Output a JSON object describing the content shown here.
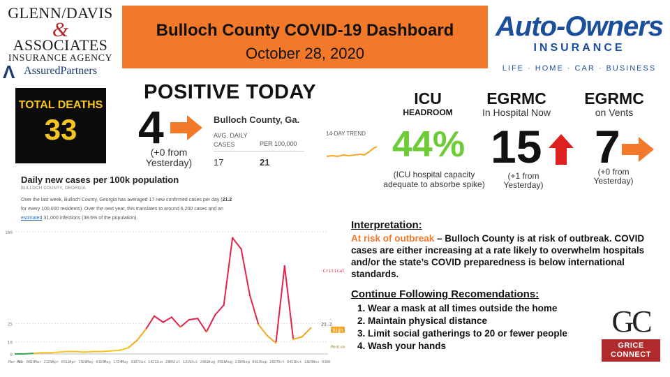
{
  "sponsor_left": {
    "line1": "GLENN/DAVIS",
    "amp": "&",
    "line2": "ASSOCIATES",
    "line3": "INSURANCE AGENCY",
    "line4": "AssuredPartners"
  },
  "header": {
    "title": "Bulloch County COVID-19 Dashboard",
    "date": "October 28, 2020"
  },
  "sponsor_right": {
    "name": "Auto-Owners",
    "sub": "INSURANCE",
    "tagline": "LIFE · HOME · CAR · BUSINESS"
  },
  "deaths": {
    "label": "TOTAL DEATHS",
    "value": "33"
  },
  "positive": {
    "title": "POSITIVE TODAY",
    "value": "4",
    "note": "(+0 from Yesterday)",
    "colors": {
      "arrow": "#f2792a"
    }
  },
  "county_widget": {
    "title": "Bulloch County, Ga.",
    "col1_header": "AVG. DAILY CASES",
    "col2_header": "PER 100,000",
    "col1_value": "17",
    "col2_value": "21",
    "trend_label": "14-DAY TREND"
  },
  "icu": {
    "title": "ICU",
    "subtitle": "HEADROOM",
    "value": "44%",
    "note": "(ICU hospital capacity adequate to absorbe spike)",
    "color": "#6bcc35"
  },
  "egrmc_hospital": {
    "title": "EGRMC",
    "subtitle": "In Hospital Now",
    "value": "15",
    "note": "(+1 from Yesterday)",
    "arrow": "up-arrow-icon",
    "arrow_color": "#e02020"
  },
  "egrmc_vents": {
    "title": "EGRMC",
    "subtitle": "on Vents",
    "value": "7",
    "note": "(+0 from Yesterday)",
    "arrow": "right-arrow-icon",
    "arrow_color": "#f2792a"
  },
  "chart_panel": {
    "title": "Daily new cases per 100k population",
    "subtitle": "BULLOCH COUNTY, GEORGIA",
    "desc_part1": "Over the last week, Bulloch County, Georgia has averaged 17 new confirmed cases per day (",
    "desc_bold": "21.2",
    "desc_part2": " for every 100,000 residents). Over the next year, this translates to around 6,200 cases and an ",
    "desc_link": "estimated",
    "desc_part3": " 31,000 infections (38.6% of the population)."
  },
  "chart_data": {
    "type": "line",
    "title": "Daily new cases per 100k population",
    "xlabel": "",
    "ylabel": "",
    "x": [
      "Mar 01",
      "Mar 08",
      "Mar 15",
      "Mar 22",
      "Mar 29",
      "Apr 05",
      "Apr 12",
      "Apr 19",
      "Apr 26",
      "May 03",
      "May 10",
      "May 17",
      "May 24",
      "May 31",
      "Jun 07",
      "Jun 14",
      "Jun 21",
      "Jun 28",
      "Jul 05",
      "Jul 12",
      "Jul 19",
      "Jul 26",
      "Aug 02",
      "Aug 09",
      "Aug 16",
      "Aug 23",
      "Aug 30",
      "Sep 06",
      "Sep 13",
      "Sep 20",
      "Sep 27",
      "Oct 04",
      "Oct 11",
      "Oct 18",
      "Oct 25"
    ],
    "values": [
      0,
      0,
      0.5,
      1,
      1,
      1.5,
      2,
      2,
      1.5,
      2,
      2,
      2.5,
      3,
      5,
      11,
      20,
      31,
      26,
      30,
      22,
      28,
      29,
      18,
      32,
      40,
      95,
      86,
      48,
      24,
      15,
      9,
      72,
      12,
      14,
      21.2
    ],
    "ylim": [
      0,
      100
    ],
    "yticks": [
      0,
      10,
      25,
      100
    ],
    "x_tick_labels": [
      "Mar 01",
      "Mar 08",
      "Mar 15",
      "Mar 22",
      "Mar 29",
      "Apr 05",
      "Apr 12",
      "Apr 19",
      "Apr 26",
      "May 03",
      "May 10",
      "May 17",
      "May 24",
      "May 31",
      "Jun 07",
      "Jun 14",
      "Jun 21",
      "Jun 28",
      "Jul 05",
      "Jul 12",
      "Jul 19",
      "Jul 26",
      "Aug 02",
      "Aug 09",
      "Aug 16",
      "Aug 23",
      "Aug 30",
      "Sep 06",
      "Sep 13",
      "Sep 20",
      "Sep 27",
      "Oct 04",
      "Oct 11",
      "Oct 18",
      "Oct 25",
      "Nov 01",
      "Nov 08"
    ],
    "x_tick_display": [
      "Mar 01",
      "Mar 08",
      "15",
      "Mar 22",
      "29",
      "Apr 05",
      "12",
      "Apr 19",
      "26",
      "May 03",
      "10",
      "May 17",
      "24",
      "May 31",
      "07",
      "Jun 14",
      "21",
      "Jun 28",
      "05",
      "Jul 12",
      "19",
      "Jul 26",
      "02",
      "Aug 09",
      "16",
      "Aug 23",
      "30",
      "Sep 06",
      "13",
      "Sep 20",
      "27",
      "Oct 04",
      "11",
      "Oct 18",
      "25",
      "Nov 01",
      "08"
    ],
    "threshold_labels": [
      "Critical",
      "High",
      "Medium"
    ],
    "current_label": "21.2",
    "colors": {
      "critical": "#e0224a",
      "high": "#f5a623",
      "medium": "#f5c623",
      "low": "#3aa655"
    },
    "grid": false
  },
  "interpretation": {
    "title": "Interpretation:",
    "risk": "At risk of outbreak",
    "text": " – Bulloch County is at risk of outbreak. COVID cases are either increasing at a rate likely to overwhelm hospitals and/or the state’s COVID preparedness is below international standards."
  },
  "recommendations": {
    "title": "Continue Following Recomendations:",
    "items": [
      "Wear a mask at all times outside the home",
      "Maintain physical distance",
      "Limit social gatherings to 20 or fewer people",
      "Wash your hands"
    ]
  },
  "sponsor_bottom": {
    "letters": "GC",
    "line1": "GRICE",
    "line2": "CONNECT"
  }
}
